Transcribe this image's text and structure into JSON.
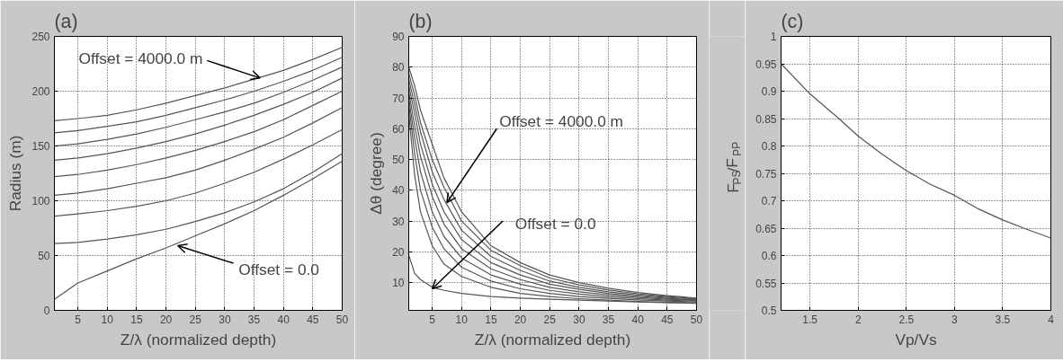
{
  "chart_data": [
    {
      "type": "line",
      "title": "(a)",
      "xlabel": "Z/λ (normalized depth)",
      "ylabel": "Radius (m)",
      "xlim": [
        1,
        50
      ],
      "ylim": [
        0,
        250
      ],
      "xticks": [
        5,
        10,
        15,
        20,
        25,
        30,
        35,
        40,
        45,
        50
      ],
      "yticks": [
        0,
        50,
        100,
        150,
        200,
        250
      ],
      "grid": true,
      "x": [
        1,
        5,
        10,
        15,
        20,
        25,
        30,
        35,
        40,
        45,
        50
      ],
      "series": [
        {
          "color": "#555555",
          "values": [
            173,
            175,
            178,
            183,
            189,
            196,
            203,
            211,
            219,
            229,
            240
          ]
        },
        {
          "color": "#555555",
          "values": [
            162,
            164,
            168,
            172,
            178,
            185,
            192,
            200,
            209,
            219,
            231
          ]
        },
        {
          "color": "#555555",
          "values": [
            150,
            152,
            156,
            161,
            167,
            174,
            181,
            189,
            199,
            210,
            222
          ]
        },
        {
          "color": "#555555",
          "values": [
            137,
            139,
            143,
            148,
            154,
            161,
            169,
            178,
            188,
            199,
            212
          ]
        },
        {
          "color": "#555555",
          "values": [
            122,
            124,
            128,
            133,
            139,
            146,
            154,
            163,
            174,
            187,
            200
          ]
        },
        {
          "color": "#555555",
          "values": [
            105,
            107,
            111,
            116,
            121,
            128,
            137,
            147,
            158,
            171,
            185
          ]
        },
        {
          "color": "#555555",
          "values": [
            86,
            88,
            91,
            95,
            100,
            107,
            116,
            126,
            138,
            151,
            165
          ]
        },
        {
          "color": "#555555",
          "values": [
            61,
            62,
            65,
            69,
            74,
            81,
            89,
            99,
            111,
            126,
            143
          ]
        },
        {
          "color": "#555555",
          "values": [
            10,
            25,
            36,
            47,
            57,
            68,
            79,
            91,
            105,
            120,
            136
          ]
        }
      ],
      "annotations": [
        {
          "text": "Offset = 4000.0 m",
          "x": 36,
          "y": 212
        },
        {
          "text": "Offset = 0.0",
          "x": 22,
          "y": 59
        }
      ]
    },
    {
      "type": "line",
      "title": "(b)",
      "xlabel": "Z/λ (normalized depth)",
      "ylabel": "Δθ (degree)",
      "xlim": [
        1,
        50
      ],
      "ylim": [
        1,
        90
      ],
      "xticks": [
        5,
        10,
        15,
        20,
        25,
        30,
        35,
        40,
        45,
        50
      ],
      "yticks": [
        10,
        20,
        30,
        40,
        50,
        60,
        70,
        80,
        90
      ],
      "grid": true,
      "x": [
        1,
        2,
        3,
        5,
        7,
        10,
        15,
        20,
        25,
        30,
        35,
        40,
        45,
        50
      ],
      "series": [
        {
          "color": "#555555",
          "values": [
            19,
            13,
            11,
            8.5,
            7.5,
            6.5,
            5.5,
            5,
            4.6,
            4.3,
            4,
            3.7,
            3.5,
            3.3
          ]
        },
        {
          "color": "#555555",
          "values": [
            65,
            45,
            33,
            22,
            16,
            12,
            8.5,
            6.5,
            5.5,
            4.8,
            4.3,
            3.9,
            3.6,
            3.4
          ]
        },
        {
          "color": "#555555",
          "values": [
            68,
            52,
            40,
            28,
            21,
            15,
            10.5,
            8,
            6.5,
            5.5,
            4.9,
            4.4,
            4,
            3.7
          ]
        },
        {
          "color": "#555555",
          "values": [
            70,
            57,
            46,
            33,
            25,
            18,
            12.5,
            9.5,
            7.5,
            6.3,
            5.4,
            4.8,
            4.3,
            4
          ]
        },
        {
          "color": "#555555",
          "values": [
            72,
            61,
            51,
            38,
            29,
            21,
            14.5,
            11,
            8.5,
            7,
            6,
            5.2,
            4.6,
            4.2
          ]
        },
        {
          "color": "#555555",
          "values": [
            74,
            65,
            55,
            42,
            33,
            24,
            16.5,
            12.5,
            9.5,
            7.8,
            6.5,
            5.6,
            4.9,
            4.4
          ]
        },
        {
          "color": "#555555",
          "values": [
            76,
            68,
            59,
            46,
            37,
            27,
            18.5,
            14,
            10.5,
            8.5,
            7,
            6,
            5.2,
            4.6
          ]
        },
        {
          "color": "#555555",
          "values": [
            78,
            71,
            62,
            50,
            41,
            30,
            20.5,
            15.5,
            11.5,
            9.3,
            7.6,
            6.4,
            5.5,
            4.8
          ]
        },
        {
          "color": "#555555",
          "values": [
            80,
            74,
            66,
            55,
            44,
            33,
            22,
            16.5,
            12.5,
            10,
            8.2,
            6.8,
            5.8,
            5
          ]
        }
      ],
      "annotations": [
        {
          "text": "Offset = 4000.0 m",
          "x": 7.5,
          "y": 36
        },
        {
          "text": "Offset = 0.0",
          "x": 5,
          "y": 8
        }
      ]
    },
    {
      "type": "line",
      "title": "(c)",
      "xlabel": "Vp/Vs",
      "ylabel": "F$_{PS}$/F$_{PP}$",
      "xlim": [
        1.2,
        4
      ],
      "ylim": [
        0.5,
        1
      ],
      "xticks": [
        1.5,
        2,
        2.5,
        3,
        3.5,
        4
      ],
      "yticks": [
        0.5,
        0.55,
        0.6,
        0.65,
        0.7,
        0.75,
        0.8,
        0.85,
        0.9,
        0.95,
        1
      ],
      "grid": true,
      "x": [
        1.2,
        1.5,
        1.8,
        2,
        2.25,
        2.5,
        2.75,
        3,
        3.25,
        3.5,
        3.75,
        4
      ],
      "series": [
        {
          "color": "#555555",
          "values": [
            0.95,
            0.895,
            0.85,
            0.818,
            0.785,
            0.755,
            0.73,
            0.71,
            0.685,
            0.665,
            0.648,
            0.632
          ]
        }
      ]
    }
  ]
}
